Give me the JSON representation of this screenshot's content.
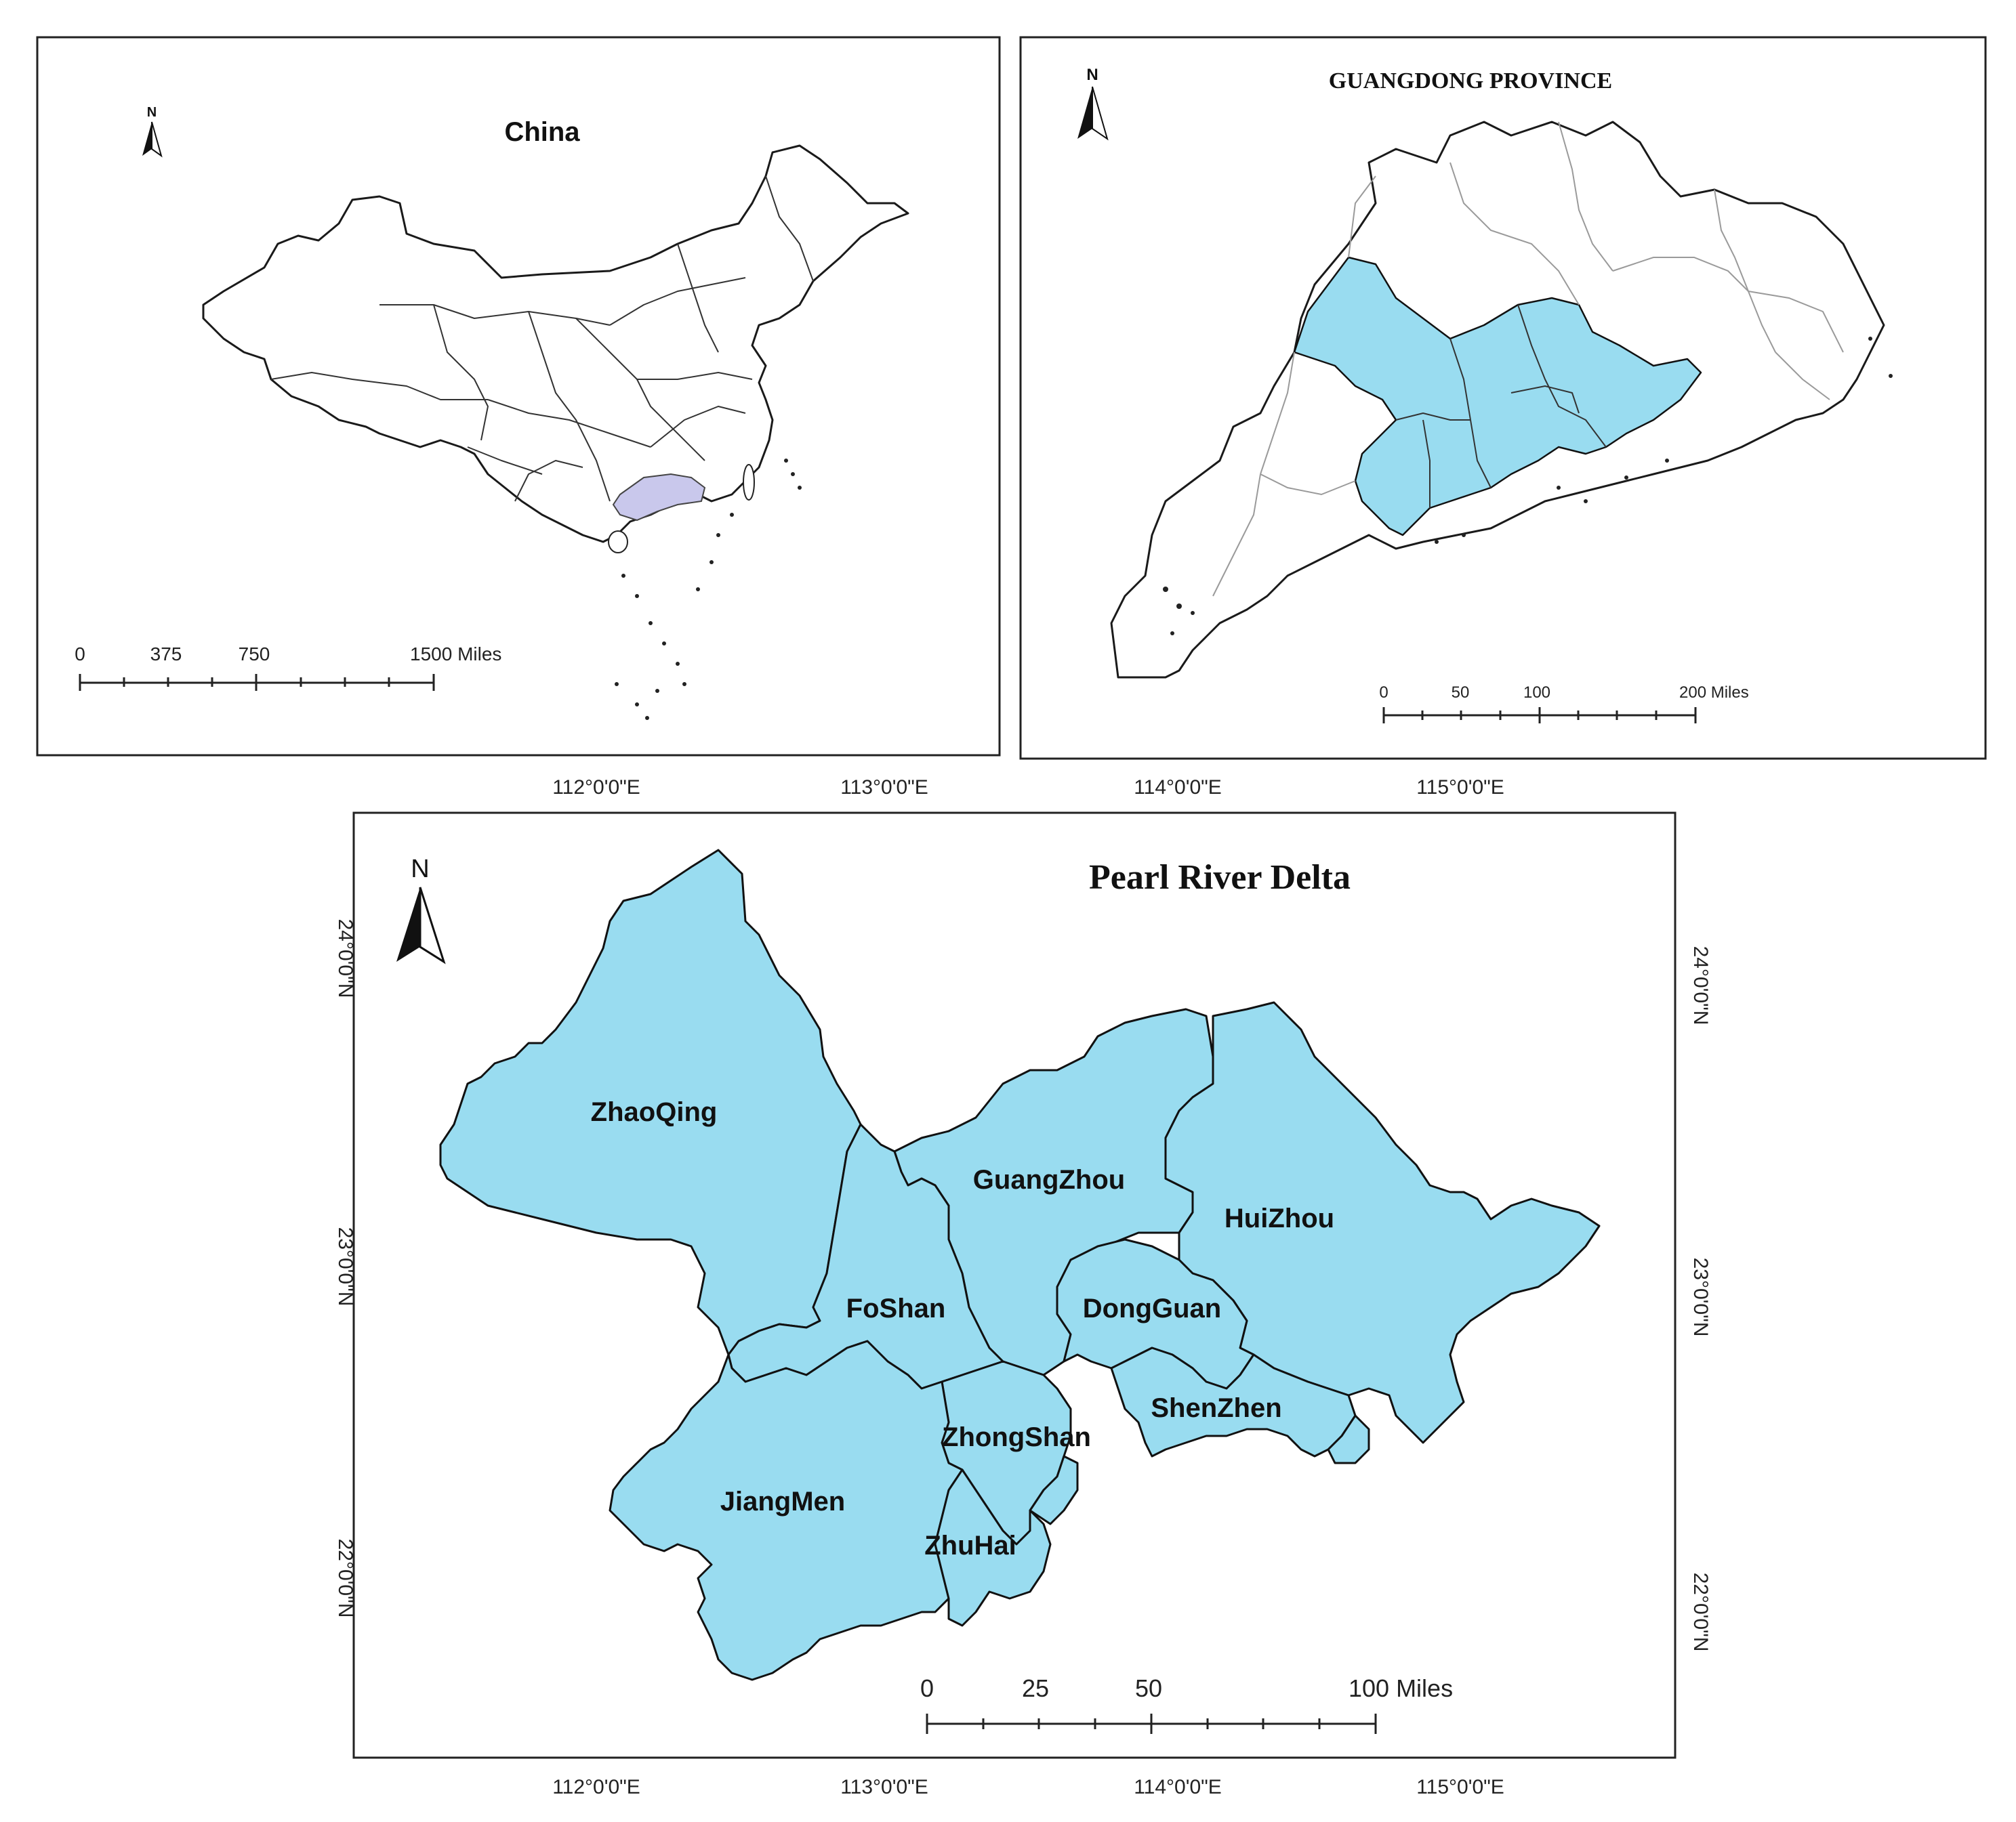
{
  "panels": {
    "china": {
      "title": "China",
      "north": "N",
      "scale": {
        "labels": [
          "0",
          "375",
          "750",
          "1500 Miles"
        ]
      },
      "highlight_color": "#c9c8ec"
    },
    "guangdong": {
      "title": "GUANGDONG PROVINCE",
      "north": "N",
      "scale": {
        "labels": [
          "0",
          "50",
          "100",
          "200 Miles"
        ]
      },
      "highlight_color": "#99dcf0"
    },
    "prd": {
      "title": "Pearl River Delta",
      "north": "N",
      "scale": {
        "labels": [
          "0",
          "25",
          "50",
          "100 Miles"
        ]
      },
      "fill_color": "#99dcf0",
      "cities": [
        "ZhaoQing",
        "GuangZhou",
        "HuiZhou",
        "FoShan",
        "DongGuan",
        "ShenZhen",
        "ZhongShan",
        "JiangMen",
        "ZhuHai"
      ],
      "lon_labels_top": [
        "112°0'0\"E",
        "113°0'0\"E",
        "114°0'0\"E",
        "115°0'0\"E"
      ],
      "lon_labels_bottom": [
        "112°0'0\"E",
        "113°0'0\"E",
        "114°0'0\"E",
        "115°0'0\"E"
      ],
      "lat_labels_left": [
        "24°0'0\"N",
        "23°0'0\"N",
        "22°0'0\"N"
      ],
      "lat_labels_right": [
        "24°0'0\"N",
        "23°0'0\"N",
        "22°0'0\"N"
      ]
    }
  }
}
